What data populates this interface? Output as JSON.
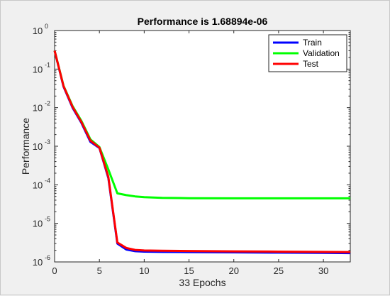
{
  "chart_data": {
    "type": "line",
    "title": "Performance is 1.68894e-06",
    "xlabel": "33 Epochs",
    "ylabel": "Performance",
    "xlim": [
      0,
      33
    ],
    "ylim": [
      1e-06,
      1
    ],
    "yscale": "log",
    "grid": false,
    "legend_position": "top-right",
    "xticks": [
      0,
      5,
      10,
      15,
      20,
      25,
      30
    ],
    "yticks": [
      {
        "base": "10",
        "exp": "-6",
        "value": 1e-06
      },
      {
        "base": "10",
        "exp": "-5",
        "value": 1e-05
      },
      {
        "base": "10",
        "exp": "-4",
        "value": 0.0001
      },
      {
        "base": "10",
        "exp": "-3",
        "value": 0.001
      },
      {
        "base": "10",
        "exp": "-2",
        "value": 0.01
      },
      {
        "base": "10",
        "exp": "-1",
        "value": 0.1
      },
      {
        "base": "10",
        "exp": "0",
        "value": 1
      }
    ],
    "x": [
      0,
      1,
      2,
      3,
      4,
      5,
      6,
      7,
      8,
      9,
      10,
      12,
      15,
      20,
      25,
      30,
      33
    ],
    "series": [
      {
        "name": "Train",
        "color": "#0000ff",
        "values": [
          0.3,
          0.035,
          0.01,
          0.004,
          0.0013,
          0.0009,
          0.00015,
          3e-06,
          2.1e-06,
          1.9e-06,
          1.85e-06,
          1.82e-06,
          1.8e-06,
          1.77e-06,
          1.74e-06,
          1.71e-06,
          1.69e-06
        ]
      },
      {
        "name": "Validation",
        "color": "#00ff00",
        "values": [
          0.3,
          0.037,
          0.011,
          0.0045,
          0.0015,
          0.00095,
          0.00025,
          6e-05,
          5.4e-05,
          5e-05,
          4.8e-05,
          4.6e-05,
          4.5e-05,
          4.45e-05,
          4.45e-05,
          4.45e-05,
          4.45e-05
        ]
      },
      {
        "name": "Test",
        "color": "#ff0000",
        "values": [
          0.3,
          0.036,
          0.0105,
          0.0042,
          0.0014,
          0.00092,
          0.00016,
          3.2e-06,
          2.3e-06,
          2.05e-06,
          1.98e-06,
          1.95e-06,
          1.92e-06,
          1.88e-06,
          1.85e-06,
          1.82e-06,
          1.8e-06
        ]
      }
    ]
  }
}
